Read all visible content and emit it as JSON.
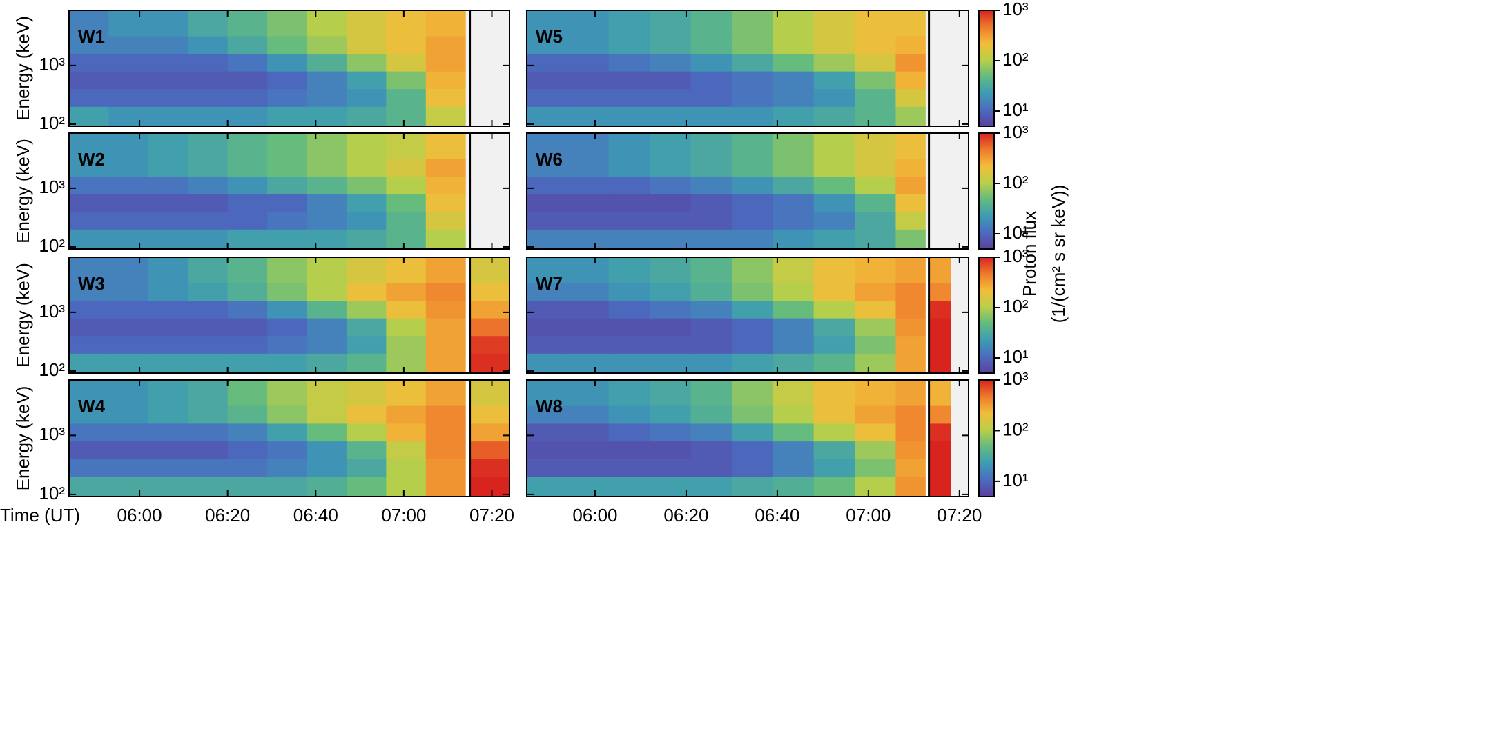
{
  "chart_data": [
    {
      "type": "heatmap",
      "label": "W1",
      "ylabel": "Energy (keV)",
      "xlim": [
        344,
        444
      ],
      "ylim": [
        92,
        8700
      ],
      "xticks": [
        {
          "value": 360,
          "label": "06:00"
        },
        {
          "value": 380,
          "label": "06:20"
        },
        {
          "value": 400,
          "label": "06:40"
        },
        {
          "value": 420,
          "label": "07:00"
        },
        {
          "value": 440,
          "label": "07:20"
        }
      ],
      "yticks": [
        {
          "value": 100,
          "label": "10²"
        },
        {
          "value": 1000,
          "label": "10³"
        }
      ],
      "vline": 435,
      "x_edges": [
        344,
        353,
        362,
        371,
        380,
        389,
        398,
        407,
        416,
        425,
        434
      ],
      "y_edges": [
        92,
        200,
        400,
        800,
        1600,
        3200,
        8700
      ],
      "z": [
        [
          25,
          20,
          20,
          20,
          20,
          25,
          25,
          30,
          40,
          120
        ],
        [
          10,
          10,
          10,
          10,
          10,
          12,
          15,
          20,
          40,
          200
        ],
        [
          8,
          8,
          8,
          8,
          8,
          10,
          15,
          25,
          60,
          250
        ],
        [
          10,
          10,
          10,
          10,
          12,
          20,
          35,
          70,
          150,
          300
        ],
        [
          15,
          15,
          15,
          20,
          30,
          50,
          80,
          150,
          200,
          300
        ],
        [
          15,
          20,
          20,
          30,
          40,
          60,
          100,
          150,
          200,
          250
        ]
      ]
    },
    {
      "type": "heatmap",
      "label": "W2",
      "ylabel": "Energy (keV)",
      "xlim": [
        344,
        444
      ],
      "ylim": [
        92,
        8700
      ],
      "xticks": [
        {
          "value": 360,
          "label": "06:00"
        },
        {
          "value": 380,
          "label": "06:20"
        },
        {
          "value": 400,
          "label": "06:40"
        },
        {
          "value": 420,
          "label": "07:00"
        },
        {
          "value": 440,
          "label": "07:20"
        }
      ],
      "yticks": [
        {
          "value": 100,
          "label": "10²"
        },
        {
          "value": 1000,
          "label": "10³"
        }
      ],
      "vline": 435,
      "x_edges": [
        344,
        353,
        362,
        371,
        380,
        389,
        398,
        407,
        416,
        425,
        434
      ],
      "y_edges": [
        92,
        200,
        400,
        800,
        1600,
        3200,
        8700
      ],
      "z": [
        [
          20,
          20,
          20,
          20,
          25,
          25,
          25,
          30,
          40,
          100
        ],
        [
          10,
          10,
          10,
          10,
          10,
          12,
          15,
          20,
          40,
          150
        ],
        [
          8,
          8,
          8,
          8,
          10,
          10,
          15,
          25,
          50,
          200
        ],
        [
          12,
          12,
          12,
          15,
          20,
          30,
          40,
          60,
          100,
          250
        ],
        [
          20,
          20,
          25,
          30,
          40,
          50,
          70,
          100,
          150,
          300
        ],
        [
          20,
          20,
          25,
          30,
          40,
          50,
          70,
          100,
          120,
          200
        ]
      ]
    },
    {
      "type": "heatmap",
      "label": "W3",
      "ylabel": "Energy (keV)",
      "xlim": [
        344,
        444
      ],
      "ylim": [
        92,
        8700
      ],
      "xticks": [
        {
          "value": 360,
          "label": "06:00"
        },
        {
          "value": 380,
          "label": "06:20"
        },
        {
          "value": 400,
          "label": "06:40"
        },
        {
          "value": 420,
          "label": "07:00"
        },
        {
          "value": 440,
          "label": "07:20"
        }
      ],
      "yticks": [
        {
          "value": 100,
          "label": "10²"
        },
        {
          "value": 1000,
          "label": "10³"
        }
      ],
      "vline": 435,
      "x_edges": [
        344,
        353,
        362,
        371,
        380,
        389,
        398,
        407,
        416,
        425,
        434,
        435,
        444
      ],
      "y_edges": [
        92,
        200,
        400,
        800,
        1600,
        3200,
        8700
      ],
      "z": [
        [
          25,
          25,
          25,
          25,
          25,
          25,
          30,
          40,
          80,
          300,
          null,
          900
        ],
        [
          10,
          10,
          10,
          10,
          10,
          12,
          15,
          25,
          80,
          300,
          null,
          800
        ],
        [
          8,
          8,
          8,
          8,
          8,
          10,
          15,
          30,
          100,
          300,
          null,
          500
        ],
        [
          10,
          10,
          10,
          10,
          12,
          20,
          40,
          80,
          200,
          350,
          null,
          300
        ],
        [
          15,
          15,
          20,
          25,
          35,
          60,
          100,
          200,
          300,
          400,
          null,
          200
        ],
        [
          15,
          15,
          20,
          30,
          40,
          70,
          100,
          150,
          200,
          300,
          null,
          150
        ]
      ]
    },
    {
      "type": "heatmap",
      "label": "W4",
      "ylabel": "Energy (keV)",
      "xlabel": "Time (UT)",
      "xlim": [
        344,
        444
      ],
      "ylim": [
        92,
        8700
      ],
      "xticks": [
        {
          "value": 360,
          "label": "06:00"
        },
        {
          "value": 380,
          "label": "06:20"
        },
        {
          "value": 400,
          "label": "06:40"
        },
        {
          "value": 420,
          "label": "07:00"
        },
        {
          "value": 440,
          "label": "07:20"
        }
      ],
      "yticks": [
        {
          "value": 100,
          "label": "10²"
        },
        {
          "value": 1000,
          "label": "10³"
        }
      ],
      "vline": 435,
      "x_edges": [
        344,
        353,
        362,
        371,
        380,
        389,
        398,
        407,
        416,
        425,
        434,
        435,
        444
      ],
      "y_edges": [
        92,
        200,
        400,
        800,
        1600,
        3200,
        8700
      ],
      "z": [
        [
          30,
          30,
          30,
          30,
          30,
          30,
          35,
          50,
          100,
          350,
          null,
          1000
        ],
        [
          12,
          12,
          12,
          12,
          12,
          15,
          20,
          30,
          100,
          350,
          null,
          900
        ],
        [
          8,
          8,
          8,
          8,
          10,
          12,
          20,
          40,
          120,
          400,
          null,
          600
        ],
        [
          12,
          12,
          12,
          12,
          15,
          25,
          50,
          100,
          250,
          400,
          null,
          300
        ],
        [
          20,
          20,
          25,
          30,
          40,
          70,
          120,
          200,
          300,
          400,
          null,
          200
        ],
        [
          20,
          20,
          25,
          30,
          50,
          80,
          120,
          150,
          200,
          300,
          null,
          150
        ]
      ]
    },
    {
      "type": "heatmap",
      "label": "W5",
      "xlim": [
        345,
        442
      ],
      "ylim": [
        92,
        8700
      ],
      "xticks": [
        {
          "value": 360,
          "label": "06:00"
        },
        {
          "value": 380,
          "label": "06:20"
        },
        {
          "value": 400,
          "label": "06:40"
        },
        {
          "value": 420,
          "label": "07:00"
        },
        {
          "value": 440,
          "label": "07:20"
        }
      ],
      "yticks": [
        {
          "value": 100,
          "label": "10²"
        },
        {
          "value": 1000,
          "label": "10³"
        }
      ],
      "vline": 433.3,
      "x_edges": [
        345,
        354,
        363,
        372,
        381,
        390,
        399,
        408,
        417,
        426,
        432.5
      ],
      "y_edges": [
        92,
        200,
        400,
        800,
        1600,
        3200,
        8700
      ],
      "z": [
        [
          20,
          20,
          20,
          20,
          20,
          20,
          25,
          30,
          40,
          80
        ],
        [
          10,
          10,
          10,
          10,
          10,
          12,
          15,
          20,
          40,
          150
        ],
        [
          8,
          8,
          8,
          8,
          10,
          12,
          15,
          25,
          60,
          250
        ],
        [
          10,
          10,
          12,
          15,
          20,
          30,
          50,
          80,
          150,
          350
        ],
        [
          20,
          20,
          25,
          30,
          40,
          60,
          100,
          150,
          200,
          250
        ],
        [
          20,
          20,
          25,
          30,
          40,
          60,
          100,
          150,
          200,
          200
        ]
      ]
    },
    {
      "type": "heatmap",
      "label": "W6",
      "xlim": [
        345,
        442
      ],
      "ylim": [
        92,
        8700
      ],
      "xticks": [
        {
          "value": 360,
          "label": "06:00"
        },
        {
          "value": 380,
          "label": "06:20"
        },
        {
          "value": 400,
          "label": "06:40"
        },
        {
          "value": 420,
          "label": "07:00"
        },
        {
          "value": 440,
          "label": "07:20"
        }
      ],
      "yticks": [
        {
          "value": 100,
          "label": "10²"
        },
        {
          "value": 1000,
          "label": "10³"
        }
      ],
      "vline": 433.3,
      "x_edges": [
        345,
        354,
        363,
        372,
        381,
        390,
        399,
        408,
        417,
        426,
        432.5
      ],
      "y_edges": [
        92,
        200,
        400,
        800,
        1600,
        3200,
        8700
      ],
      "z": [
        [
          15,
          15,
          15,
          15,
          15,
          15,
          20,
          25,
          30,
          60
        ],
        [
          8,
          8,
          8,
          8,
          8,
          10,
          12,
          15,
          30,
          120
        ],
        [
          7,
          7,
          7,
          7,
          8,
          10,
          12,
          20,
          40,
          200
        ],
        [
          10,
          10,
          10,
          12,
          15,
          20,
          30,
          50,
          100,
          300
        ],
        [
          15,
          15,
          20,
          25,
          30,
          40,
          60,
          100,
          150,
          250
        ],
        [
          15,
          15,
          20,
          25,
          30,
          40,
          60,
          100,
          150,
          200
        ]
      ]
    },
    {
      "type": "heatmap",
      "label": "W7",
      "xlim": [
        345,
        442
      ],
      "ylim": [
        92,
        8700
      ],
      "xticks": [
        {
          "value": 360,
          "label": "06:00"
        },
        {
          "value": 380,
          "label": "06:20"
        },
        {
          "value": 400,
          "label": "06:40"
        },
        {
          "value": 420,
          "label": "07:00"
        },
        {
          "value": 440,
          "label": "07:20"
        }
      ],
      "yticks": [
        {
          "value": 100,
          "label": "10²"
        },
        {
          "value": 1000,
          "label": "10³"
        }
      ],
      "vline": 433.3,
      "x_edges": [
        345,
        354,
        363,
        372,
        381,
        390,
        399,
        408,
        417,
        426,
        432.5,
        433.5,
        438
      ],
      "y_edges": [
        92,
        200,
        400,
        800,
        1600,
        3200,
        8700
      ],
      "z": [
        [
          20,
          20,
          20,
          20,
          20,
          25,
          30,
          40,
          80,
          300,
          null,
          1000
        ],
        [
          8,
          8,
          8,
          8,
          8,
          10,
          15,
          25,
          60,
          300,
          null,
          1000
        ],
        [
          7,
          7,
          7,
          7,
          8,
          10,
          15,
          30,
          80,
          350,
          null,
          1000
        ],
        [
          8,
          8,
          10,
          12,
          15,
          25,
          50,
          100,
          200,
          400,
          null,
          900
        ],
        [
          15,
          15,
          20,
          25,
          35,
          60,
          100,
          200,
          300,
          400,
          null,
          400
        ],
        [
          20,
          20,
          25,
          30,
          40,
          70,
          120,
          200,
          250,
          300,
          null,
          300
        ]
      ]
    },
    {
      "type": "heatmap",
      "label": "W8",
      "xlabel": "Time (UT)",
      "xlim": [
        345,
        442
      ],
      "ylim": [
        92,
        8700
      ],
      "xticks": [
        {
          "value": 360,
          "label": "06:00"
        },
        {
          "value": 380,
          "label": "06:20"
        },
        {
          "value": 400,
          "label": "06:40"
        },
        {
          "value": 420,
          "label": "07:00"
        },
        {
          "value": 440,
          "label": "07:20"
        }
      ],
      "yticks": [
        {
          "value": 100,
          "label": "10²"
        },
        {
          "value": 1000,
          "label": "10³"
        }
      ],
      "vline": 433.3,
      "x_edges": [
        345,
        354,
        363,
        372,
        381,
        390,
        399,
        408,
        417,
        426,
        432.5,
        433.5,
        438
      ],
      "y_edges": [
        92,
        200,
        400,
        800,
        1600,
        3200,
        8700
      ],
      "z": [
        [
          25,
          25,
          25,
          25,
          25,
          30,
          35,
          50,
          100,
          350,
          null,
          1000
        ],
        [
          8,
          8,
          8,
          8,
          8,
          10,
          15,
          25,
          60,
          300,
          null,
          1000
        ],
        [
          7,
          7,
          7,
          7,
          8,
          10,
          15,
          30,
          80,
          350,
          null,
          1000
        ],
        [
          8,
          8,
          10,
          12,
          15,
          25,
          50,
          100,
          200,
          400,
          null,
          900
        ],
        [
          15,
          15,
          20,
          25,
          35,
          60,
          100,
          200,
          300,
          400,
          null,
          400
        ],
        [
          20,
          20,
          25,
          30,
          40,
          70,
          120,
          200,
          250,
          300,
          null,
          250
        ]
      ]
    }
  ],
  "colorbar": {
    "label": [
      "Proton flux",
      "(1/(cm² s sr keV))"
    ],
    "clim": [
      5,
      1000
    ],
    "ticks": [
      {
        "value": 10,
        "label": "10¹"
      },
      {
        "value": 100,
        "label": "10²"
      },
      {
        "value": 1000,
        "label": "10³"
      }
    ],
    "colormap": [
      "#5a3f9e",
      "#4b6cc0",
      "#3d9cb4",
      "#62bb7e",
      "#b9cf4a",
      "#f2bd3a",
      "#ee7a2c",
      "#d8231f"
    ]
  }
}
